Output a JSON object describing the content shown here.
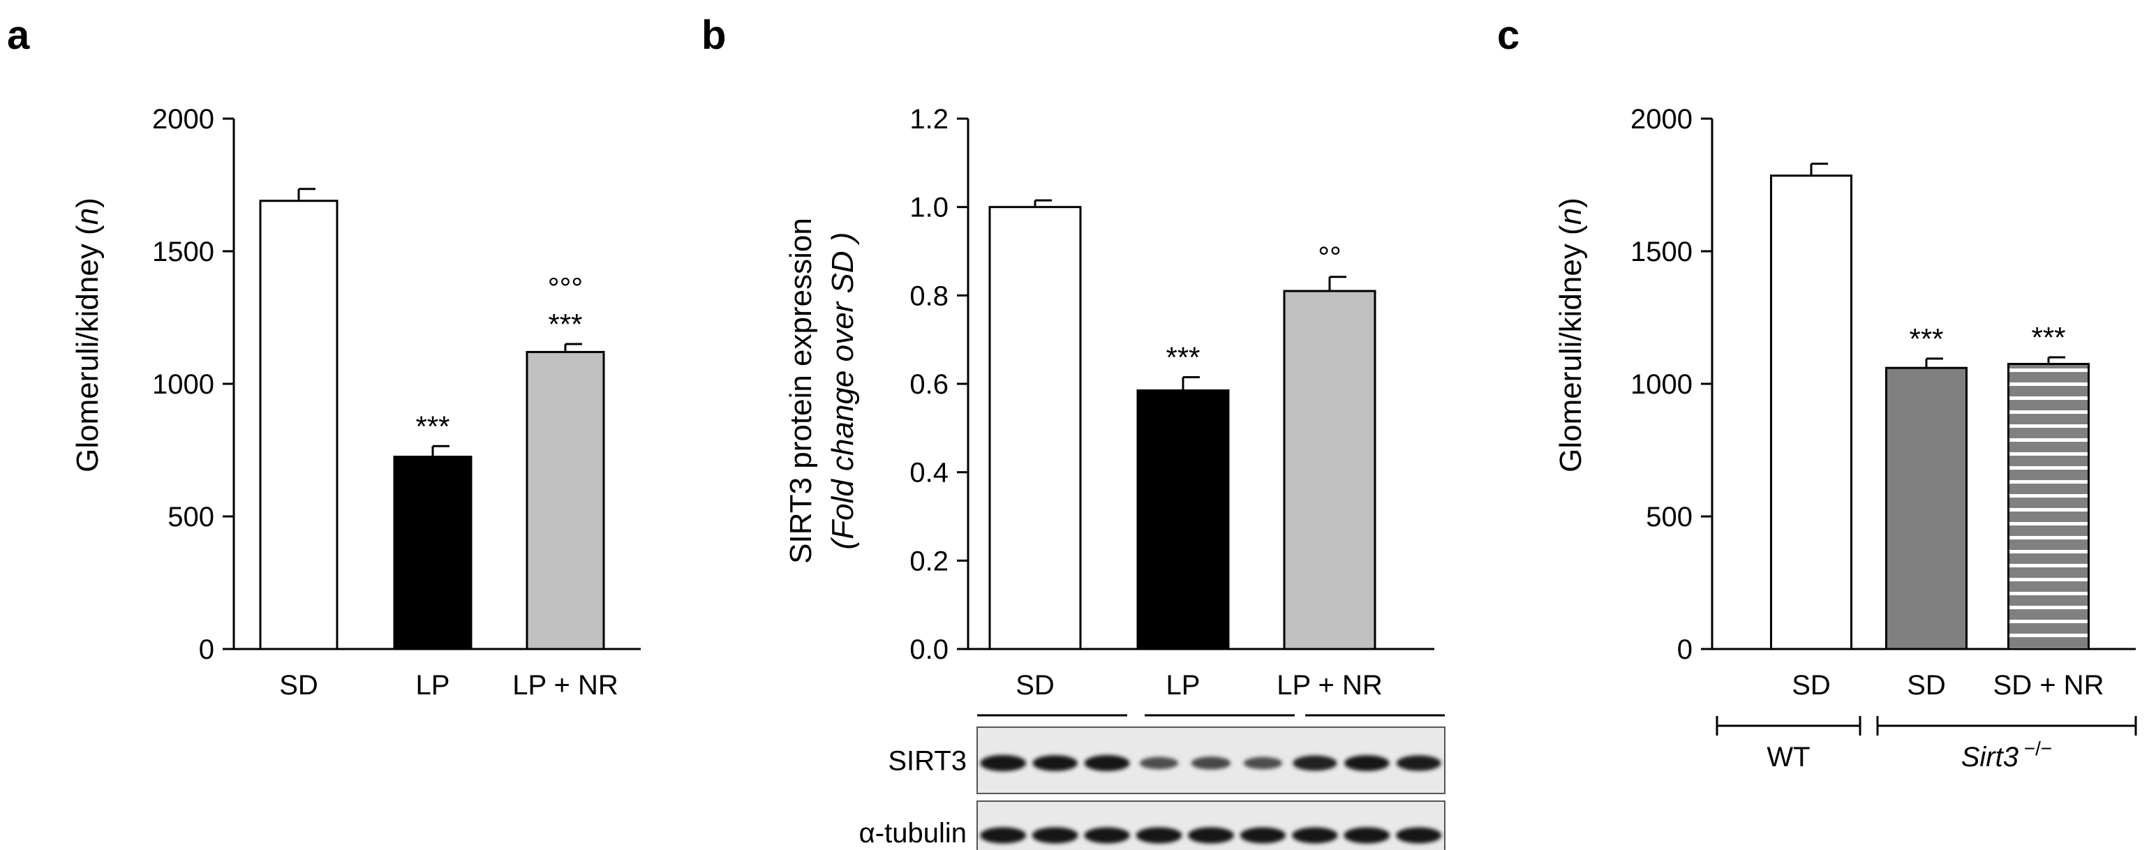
{
  "chart_data": [
    {
      "panel": "a",
      "type": "bar",
      "ylabel_main": "Glomeruli/kidney (",
      "ylabel_italic": "n",
      "ylabel_close": ")",
      "ylim": [
        0,
        2000
      ],
      "yticks": [
        0,
        500,
        1000,
        1500,
        2000
      ],
      "categories": [
        "SD",
        "LP",
        "LP + NR"
      ],
      "values": [
        1690,
        725,
        1120
      ],
      "errors": [
        45,
        40,
        30
      ],
      "fills": [
        "#ffffff",
        "#000000",
        "#c0c0c0"
      ],
      "annotations": [
        [],
        [
          "***"
        ],
        [
          "°°°",
          "***"
        ]
      ]
    },
    {
      "panel": "b",
      "type": "bar",
      "ylabel_line1": "SIRT3 protein expression",
      "ylabel_line2": "(Fold change over SD )",
      "ylim": [
        0,
        1.2
      ],
      "yticks": [
        "0.0",
        "0.2",
        "0.4",
        "0.6",
        "0.8",
        "1.0",
        "1.2"
      ],
      "categories": [
        "SD",
        "LP",
        "LP + NR"
      ],
      "values": [
        1.0,
        0.585,
        0.81
      ],
      "errors": [
        0.015,
        0.03,
        0.032
      ],
      "fills": [
        "#ffffff",
        "#000000",
        "#c0c0c0"
      ],
      "annotations": [
        [],
        [
          "***"
        ],
        [
          "°°"
        ]
      ],
      "blot": {
        "groups": [
          "SD",
          "LP",
          "LP + NR"
        ],
        "rows": [
          {
            "label": "SIRT3",
            "intensities": [
              0.95,
              0.9,
              0.92,
              0.55,
              0.6,
              0.55,
              0.85,
              0.9,
              0.88
            ]
          },
          {
            "label": "α-tubulin",
            "intensities": [
              0.95,
              0.95,
              0.93,
              0.95,
              0.95,
              0.93,
              0.93,
              0.95,
              0.93
            ]
          }
        ]
      }
    },
    {
      "panel": "c",
      "type": "bar",
      "ylabel_main": "Glomeruli/kidney (",
      "ylabel_italic": "n",
      "ylabel_close": ")",
      "ylim": [
        0,
        2000
      ],
      "yticks": [
        0,
        500,
        1000,
        1500,
        2000
      ],
      "categories": [
        "SD",
        "SD",
        "SD + NR"
      ],
      "values": [
        1785,
        1060,
        1075
      ],
      "errors": [
        45,
        35,
        25
      ],
      "fills": [
        "#ffffff",
        "#808080",
        "#808080"
      ],
      "patterns": [
        "none",
        "none",
        "stripes"
      ],
      "annotations": [
        [],
        [
          "***"
        ],
        [
          "***"
        ]
      ],
      "groups": [
        {
          "label": "WT",
          "italic": false,
          "superscript": ""
        },
        {
          "label": "Sirt3",
          "italic": true,
          "superscript": " −/−"
        }
      ]
    }
  ]
}
